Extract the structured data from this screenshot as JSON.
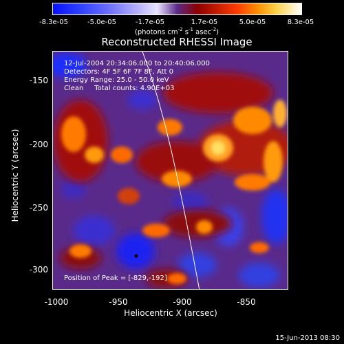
{
  "colorbar": {
    "ticks": [
      "-8.3e-05",
      "-5.0e-05",
      "-1.7e-05",
      "1.7e-05",
      "5.0e-05",
      "8.3e-05"
    ],
    "unit_label": "(photons cm",
    "unit_exp1": "-2",
    "unit_mid": " s",
    "unit_exp2": "-1",
    "unit_tail": " asec",
    "unit_exp3": "-2",
    "unit_end": ")"
  },
  "title": "Reconstructed RHESSI Image",
  "info": {
    "time_range": "12-Jul-2004 20:34:06.000 to 20:40:06.000",
    "detectors": "Detectors: 4F 5F 6F 7F 8F, Att 0",
    "energy": "Energy Range: 25.0 - 50.0 keV",
    "clean": "Clean     Total counts: 4.90E+03"
  },
  "peak": "Position of Peak = [-829,-192]",
  "axes": {
    "xlabel": "Heliocentric X (arcsec)",
    "ylabel": "Heliocentric Y (arcsec)",
    "xticks": [
      "-1000",
      "-950",
      "-900",
      "-850"
    ],
    "yticks": [
      "-150",
      "-200",
      "-250",
      "-300"
    ]
  },
  "footer_date": "15-Jun-2013 08:30",
  "colors": {
    "background": "#000000",
    "low": "#0a10ff",
    "mid": "#5b2a8a",
    "high": "#ff8a00",
    "peak": "#ffffff"
  }
}
